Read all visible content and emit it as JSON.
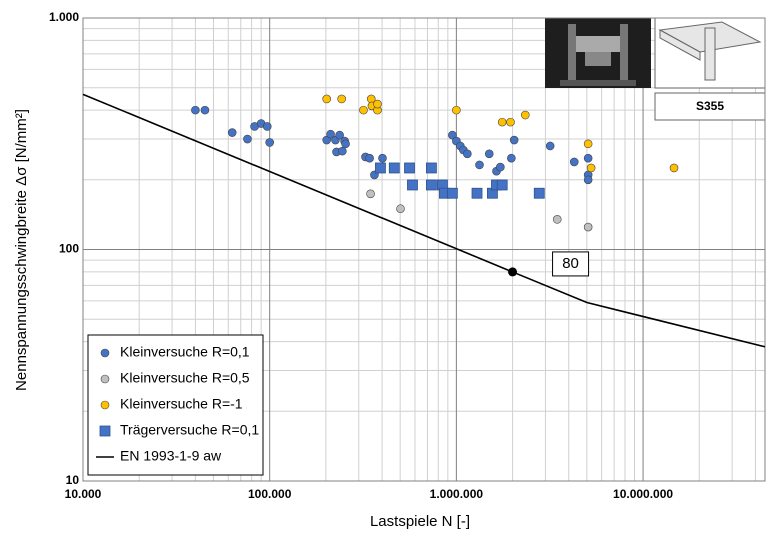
{
  "chart_data": {
    "type": "scatter",
    "x_label": "Lastspiele N [-]",
    "y_label": "Nennspannungsschwingbreite Δσ [N/mm²]",
    "xscale": "log",
    "yscale": "log",
    "grid": true,
    "minor_grid": true,
    "legend": "lower left",
    "xlim": [
      10000,
      45000000
    ],
    "ylim": [
      10,
      1000
    ],
    "xticks": [
      {
        "value": 10000,
        "label": "10.000"
      },
      {
        "value": 100000,
        "label": "100.000"
      },
      {
        "value": 1000000,
        "label": "1.000.000"
      },
      {
        "value": 10000000,
        "label": "10.000.000"
      }
    ],
    "yticks": [
      10,
      100,
      {
        "value": 1000,
        "label": "1.000"
      }
    ],
    "series": [
      {
        "name": "Kleinversuche R=0,1",
        "color": "#4472c4",
        "marker": "circle",
        "x": [
          40000,
          45000,
          63000,
          76000,
          83000,
          90000,
          97000,
          100000,
          202000,
          212000,
          225000,
          237000,
          252000,
          228000,
          245000,
          255000,
          326000,
          343000,
          364000,
          402000,
          952000,
          1000000,
          1050000,
          1090000,
          1145000,
          1330000,
          1500000,
          1640000,
          1720000,
          1970000,
          2040000,
          3180000,
          4280000,
          5080000,
          5080000,
          5080000
        ],
        "values": [
          400,
          400,
          320,
          300,
          340,
          350,
          340,
          290,
          297,
          315,
          297,
          312,
          294,
          264,
          266,
          286,
          251,
          248,
          210,
          248,
          312,
          294,
          280,
          269,
          259,
          232,
          259,
          218,
          227,
          248,
          297,
          280,
          239,
          248,
          210,
          200
        ]
      },
      {
        "name": "Kleinversuche R=0,5",
        "color": "#bfbfbf",
        "marker": "circle",
        "x": [
          347000,
          502000,
          3470000,
          5080000
        ],
        "values": [
          174,
          150,
          135,
          125
        ]
      },
      {
        "name": "Kleinversuche R=-1",
        "color": "#ffc000",
        "marker": "circle",
        "x": [
          202000,
          243000,
          318000,
          350000,
          353000,
          378000,
          378000,
          1000000,
          1760000,
          1950000,
          2340000,
          5080000,
          5270000,
          14650000
        ],
        "values": [
          447,
          447,
          400,
          447,
          417,
          400,
          425,
          400,
          355,
          355,
          381,
          286,
          225,
          225
        ]
      },
      {
        "name": "Trägerversuche R=0,1",
        "color": "#4472c4",
        "marker": "square",
        "x": [
          392000,
          465000,
          561000,
          582000,
          735000,
          735000,
          842000,
          863000,
          952000,
          1290000,
          1560000,
          1640000,
          1760000,
          2780000
        ],
        "values": [
          225,
          225,
          225,
          190,
          190,
          225,
          190,
          175,
          175,
          175,
          175,
          190,
          190,
          175
        ]
      },
      {
        "name": "EN 1993-1-9 aw",
        "color": "#000000",
        "marker": "line",
        "x": [
          10000,
          2000000,
          5000000,
          45000000
        ],
        "values": [
          468,
          80,
          59,
          38
        ]
      }
    ],
    "annotation": {
      "label": "80",
      "x": 2000000,
      "y": 80
    },
    "inset_label": "S355"
  }
}
